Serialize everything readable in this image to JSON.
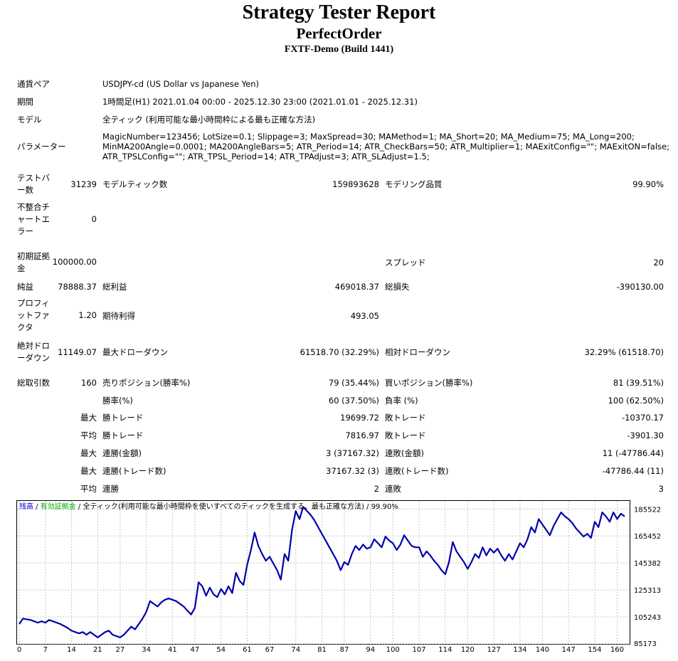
{
  "header": {
    "title": "Strategy Tester Report",
    "expert": "PerfectOrder",
    "server": "FXTF-Demo (Build 1441)"
  },
  "settings": {
    "symbol_label": "通貨ペア",
    "symbol_value": "USDJPY-cd (US Dollar vs Japanese Yen)",
    "period_label": "期間",
    "period_value": "1時間足(H1) 2021.01.04 00:00 - 2025.12.30 23:00 (2021.01.01 - 2025.12.31)",
    "model_label": "モデル",
    "model_value": "全ティック (利用可能な最小時間枠による最も正確な方法)",
    "params_label": "パラメーター",
    "params_lines": [
      "MagicNumber=123456; LotSize=0.1; Slippage=3; MaxSpread=30; MAMethod=1; MA_Short=20; MA_Medium=75; MA_Long=200;",
      "MinMA200Angle=0.0001; MA200AngleBars=5; ATR_Period=14; ATR_CheckBars=50; ATR_Multiplier=1; MAExitConfig=\"\"; MAExitON=false;",
      "ATR_TPSLConfig=\"\"; ATR_TPSL_Period=14; ATR_TPAdjust=3; ATR_SLAdjust=1.5;"
    ]
  },
  "stats": {
    "bars_label": [
      "テストバ",
      "ー数"
    ],
    "bars_value": "31239",
    "ticks_label": "モデルティック数",
    "ticks_value": "159893628",
    "quality_label": "モデリング品質",
    "quality_value": "99.90%",
    "mismatch_label": [
      "不整合チ",
      "ャートエ",
      "ラー"
    ],
    "mismatch_value": "0",
    "deposit_label": [
      "初期証拠",
      "金"
    ],
    "deposit_value": "100000.00",
    "spread_label": "スプレッド",
    "spread_value": "20",
    "net_label": "純益",
    "net_value": "78888.37",
    "gross_profit_label": "総利益",
    "gross_profit_value": "469018.37",
    "gross_loss_label": "総損失",
    "gross_loss_value": "-390130.00",
    "pf_label": [
      "プロフィ",
      "ットファ",
      "クタ"
    ],
    "pf_value": "1.20",
    "expected_label": "期待利得",
    "expected_value": "493.05",
    "abs_dd_label": [
      "絶対ドロ",
      "ーダウン"
    ],
    "abs_dd_value": "11149.07",
    "max_dd_label": "最大ドローダウン",
    "max_dd_value": "61518.70 (32.29%)",
    "rel_dd_label": "相対ドローダウン",
    "rel_dd_value": "32.29% (61518.70)",
    "total_label": "総取引数",
    "total_value": "160",
    "short_label": "売りポジション(勝率%)",
    "short_value": "79 (35.44%)",
    "long_label": "買いポジション(勝率%)",
    "long_value": "81 (39.51%)",
    "winrate_label": "勝率(%)",
    "winrate_value": "60 (37.50%)",
    "lossrate_label": "負率 (%)",
    "lossrate_value": "100 (62.50%)",
    "max_label": "最大",
    "avg_label": "平均",
    "max_win_label": "勝トレード",
    "max_win_value": "19699.72",
    "max_loss_label": "敗トレード",
    "max_loss_value": "-10370.17",
    "avg_win_label": "勝トレード",
    "avg_win_value": "7816.97",
    "avg_loss_label": "敗トレード",
    "avg_loss_value": "-3901.30",
    "max_consec_win_amt_label": "連勝(金額)",
    "max_consec_win_amt_value": "3 (37167.32)",
    "max_consec_loss_amt_label": "連敗(金額)",
    "max_consec_loss_amt_value": "11 (-47786.44)",
    "max_consec_win_cnt_label": "連勝(トレード数)",
    "max_consec_win_cnt_value": "37167.32 (3)",
    "max_consec_loss_cnt_label": "連敗(トレード数)",
    "max_consec_loss_cnt_value": "-47786.44 (11)",
    "avg_consec_win_label": "連勝",
    "avg_consec_win_value": "2",
    "avg_consec_loss_label": "連敗",
    "avg_consec_loss_value": "3"
  },
  "chart_data": {
    "type": "line",
    "legend": [
      {
        "text": "残高",
        "color": "#0000cc"
      },
      {
        "text": " / ",
        "color": "#000000"
      },
      {
        "text": "有効証拠金",
        "color": "#00aa00"
      },
      {
        "text": " / 全ティック(利用可能な最小時間枠を使いすべてのティックを生成する、最も正確な方法) / 99.90%",
        "color": "#000000"
      }
    ],
    "line_color": "#0000aa",
    "xlim": [
      0,
      162
    ],
    "ylim": [
      85173,
      191500
    ],
    "x_ticks": [
      0,
      7,
      14,
      21,
      27,
      34,
      41,
      47,
      54,
      61,
      67,
      74,
      81,
      87,
      94,
      100,
      107,
      114,
      120,
      127,
      134,
      140,
      147,
      154,
      160
    ],
    "y_ticks": [
      185522,
      165452,
      145382,
      125313,
      105243,
      85173
    ],
    "series": [
      {
        "values": [
          [
            0,
            100000
          ],
          [
            1,
            104000
          ],
          [
            3,
            103000
          ],
          [
            5,
            101000
          ],
          [
            6,
            102000
          ],
          [
            7,
            101000
          ],
          [
            8,
            103000
          ],
          [
            9,
            102000
          ],
          [
            11,
            100000
          ],
          [
            13,
            97000
          ],
          [
            14,
            95000
          ],
          [
            16,
            93000
          ],
          [
            17,
            94000
          ],
          [
            18,
            92000
          ],
          [
            19,
            94000
          ],
          [
            20,
            92000
          ],
          [
            21,
            90000
          ],
          [
            23,
            94000
          ],
          [
            24,
            95000
          ],
          [
            25,
            92000
          ],
          [
            26,
            91000
          ],
          [
            27,
            90000
          ],
          [
            28,
            92000
          ],
          [
            29,
            95000
          ],
          [
            30,
            98000
          ],
          [
            31,
            96000
          ],
          [
            32,
            100000
          ],
          [
            33,
            104000
          ],
          [
            34,
            109000
          ],
          [
            35,
            117000
          ],
          [
            36,
            115000
          ],
          [
            37,
            113000
          ],
          [
            38,
            116000
          ],
          [
            39,
            118000
          ],
          [
            40,
            119000
          ],
          [
            41,
            118000
          ],
          [
            42,
            117000
          ],
          [
            43,
            115000
          ],
          [
            44,
            113000
          ],
          [
            45,
            110000
          ],
          [
            46,
            107000
          ],
          [
            47,
            112000
          ],
          [
            48,
            131000
          ],
          [
            49,
            128000
          ],
          [
            50,
            121000
          ],
          [
            51,
            127000
          ],
          [
            52,
            122000
          ],
          [
            53,
            120000
          ],
          [
            54,
            126000
          ],
          [
            55,
            122000
          ],
          [
            56,
            128000
          ],
          [
            57,
            123000
          ],
          [
            58,
            138000
          ],
          [
            59,
            132000
          ],
          [
            60,
            129000
          ],
          [
            61,
            144000
          ],
          [
            62,
            155000
          ],
          [
            63,
            168000
          ],
          [
            64,
            158000
          ],
          [
            65,
            152000
          ],
          [
            66,
            147000
          ],
          [
            67,
            150000
          ],
          [
            68,
            145000
          ],
          [
            69,
            140000
          ],
          [
            70,
            133000
          ],
          [
            71,
            152000
          ],
          [
            72,
            147000
          ],
          [
            73,
            170000
          ],
          [
            74,
            184000
          ],
          [
            75,
            178000
          ],
          [
            76,
            187000
          ],
          [
            77,
            184000
          ],
          [
            78,
            181000
          ],
          [
            79,
            177000
          ],
          [
            80,
            172000
          ],
          [
            81,
            167000
          ],
          [
            82,
            162000
          ],
          [
            83,
            157000
          ],
          [
            84,
            152000
          ],
          [
            85,
            147000
          ],
          [
            86,
            140000
          ],
          [
            87,
            146000
          ],
          [
            88,
            144000
          ],
          [
            89,
            152000
          ],
          [
            90,
            158000
          ],
          [
            91,
            155000
          ],
          [
            92,
            159000
          ],
          [
            93,
            156000
          ],
          [
            94,
            157000
          ],
          [
            95,
            163000
          ],
          [
            96,
            160000
          ],
          [
            97,
            157000
          ],
          [
            98,
            165000
          ],
          [
            99,
            162000
          ],
          [
            100,
            160000
          ],
          [
            101,
            155000
          ],
          [
            102,
            159000
          ],
          [
            103,
            166000
          ],
          [
            104,
            162000
          ],
          [
            105,
            158000
          ],
          [
            106,
            157000
          ],
          [
            107,
            157000
          ],
          [
            108,
            150000
          ],
          [
            109,
            154000
          ],
          [
            110,
            151000
          ],
          [
            111,
            147000
          ],
          [
            112,
            144000
          ],
          [
            113,
            140000
          ],
          [
            114,
            137000
          ],
          [
            115,
            146000
          ],
          [
            116,
            161000
          ],
          [
            117,
            154000
          ],
          [
            118,
            150000
          ],
          [
            119,
            146000
          ],
          [
            120,
            141000
          ],
          [
            121,
            146000
          ],
          [
            122,
            152000
          ],
          [
            123,
            149000
          ],
          [
            124,
            157000
          ],
          [
            125,
            151000
          ],
          [
            126,
            156000
          ],
          [
            127,
            153000
          ],
          [
            128,
            156000
          ],
          [
            129,
            151000
          ],
          [
            130,
            147000
          ],
          [
            131,
            152000
          ],
          [
            132,
            148000
          ],
          [
            133,
            154000
          ],
          [
            134,
            160000
          ],
          [
            135,
            157000
          ],
          [
            136,
            163000
          ],
          [
            137,
            172000
          ],
          [
            138,
            168000
          ],
          [
            139,
            178000
          ],
          [
            140,
            174000
          ],
          [
            141,
            170000
          ],
          [
            142,
            166000
          ],
          [
            143,
            173000
          ],
          [
            144,
            178000
          ],
          [
            145,
            183000
          ],
          [
            146,
            180000
          ],
          [
            147,
            178000
          ],
          [
            148,
            175000
          ],
          [
            149,
            171000
          ],
          [
            150,
            168000
          ],
          [
            151,
            165000
          ],
          [
            152,
            167000
          ],
          [
            153,
            164000
          ],
          [
            154,
            176000
          ],
          [
            155,
            172000
          ],
          [
            156,
            183000
          ],
          [
            157,
            180000
          ],
          [
            158,
            176000
          ],
          [
            159,
            183000
          ],
          [
            160,
            178000
          ],
          [
            161,
            182000
          ],
          [
            162,
            180000
          ]
        ]
      }
    ],
    "grid": true
  }
}
